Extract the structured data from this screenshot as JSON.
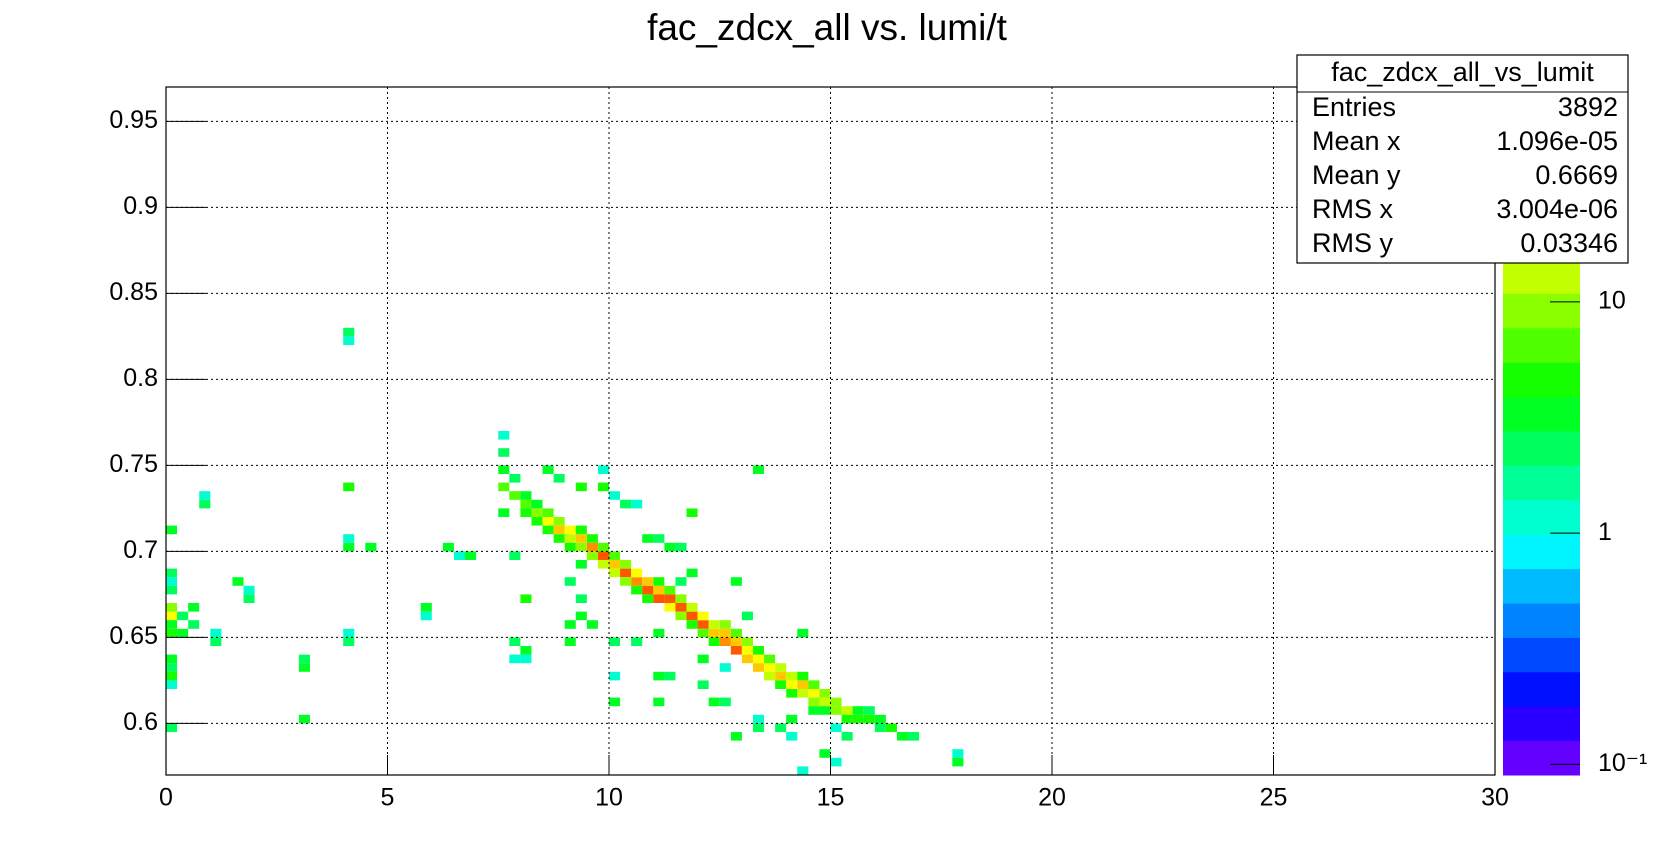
{
  "chart_data": {
    "type": "heatmap2d",
    "title": "fac_zdcx_all vs. lumi/t",
    "xlim": [
      0,
      30
    ],
    "xticks": [
      0,
      5,
      10,
      15,
      20,
      25,
      30
    ],
    "ylim": [
      0.57,
      0.97
    ],
    "yticks": [
      0.6,
      0.65,
      0.7,
      0.75,
      0.8,
      0.85,
      0.9,
      0.95
    ],
    "zlim": [
      0.09,
      85
    ],
    "zlog": true,
    "zticks": [
      {
        "value": 0.1,
        "label": "10⁻¹"
      },
      1,
      10
    ],
    "contours": 20,
    "bin_width": [
      0.25,
      0.005
    ],
    "grid": true,
    "stats": {
      "title": "fac_zdcx_all_vs_lumit",
      "rows": [
        {
          "label": "Entries",
          "value": "3892"
        },
        {
          "label": "Mean x",
          "value": "1.096e-05"
        },
        {
          "label": "Mean y",
          "value": "0.6669"
        },
        {
          "label": "RMS x",
          "value": "3.004e-06"
        },
        {
          "label": "RMS y",
          "value": "0.03346"
        }
      ]
    },
    "cells": [
      {
        "x": 8.125,
        "y": 0.7275,
        "z": 6
      },
      {
        "x": 8.125,
        "y": 0.7325,
        "z": 3
      },
      {
        "x": 8.125,
        "y": 0.7225,
        "z": 4
      },
      {
        "x": 8.375,
        "y": 0.7225,
        "z": 10
      },
      {
        "x": 8.375,
        "y": 0.7175,
        "z": 4
      },
      {
        "x": 8.375,
        "y": 0.7275,
        "z": 3
      },
      {
        "x": 8.625,
        "y": 0.7175,
        "z": 20
      },
      {
        "x": 8.625,
        "y": 0.7125,
        "z": 5
      },
      {
        "x": 8.625,
        "y": 0.7225,
        "z": 6
      },
      {
        "x": 8.875,
        "y": 0.7125,
        "z": 25
      },
      {
        "x": 8.875,
        "y": 0.7175,
        "z": 8
      },
      {
        "x": 8.875,
        "y": 0.7075,
        "z": 4
      },
      {
        "x": 9.125,
        "y": 0.7075,
        "z": 15
      },
      {
        "x": 9.125,
        "y": 0.7125,
        "z": 20
      },
      {
        "x": 9.125,
        "y": 0.7025,
        "z": 4
      },
      {
        "x": 9.375,
        "y": 0.7075,
        "z": 30
      },
      {
        "x": 9.375,
        "y": 0.7025,
        "z": 10
      },
      {
        "x": 9.375,
        "y": 0.7125,
        "z": 4
      },
      {
        "x": 9.625,
        "y": 0.7025,
        "z": 40
      },
      {
        "x": 9.625,
        "y": 0.6975,
        "z": 8
      },
      {
        "x": 9.625,
        "y": 0.7075,
        "z": 5
      },
      {
        "x": 9.875,
        "y": 0.6975,
        "z": 50
      },
      {
        "x": 9.875,
        "y": 0.6925,
        "z": 12
      },
      {
        "x": 9.875,
        "y": 0.7025,
        "z": 6
      },
      {
        "x": 10.125,
        "y": 0.6925,
        "z": 30
      },
      {
        "x": 10.125,
        "y": 0.6875,
        "z": 15
      },
      {
        "x": 10.125,
        "y": 0.6975,
        "z": 6
      },
      {
        "x": 10.375,
        "y": 0.6875,
        "z": 50
      },
      {
        "x": 10.375,
        "y": 0.6825,
        "z": 10
      },
      {
        "x": 10.375,
        "y": 0.6925,
        "z": 8
      },
      {
        "x": 10.625,
        "y": 0.6825,
        "z": 40
      },
      {
        "x": 10.625,
        "y": 0.6875,
        "z": 20
      },
      {
        "x": 10.625,
        "y": 0.6775,
        "z": 5
      },
      {
        "x": 10.875,
        "y": 0.6775,
        "z": 50
      },
      {
        "x": 10.875,
        "y": 0.6825,
        "z": 25
      },
      {
        "x": 10.875,
        "y": 0.6725,
        "z": 4
      },
      {
        "x": 11.125,
        "y": 0.6775,
        "z": 30
      },
      {
        "x": 11.125,
        "y": 0.6725,
        "z": 50
      },
      {
        "x": 11.125,
        "y": 0.6825,
        "z": 5
      },
      {
        "x": 11.375,
        "y": 0.6725,
        "z": 45
      },
      {
        "x": 11.375,
        "y": 0.6675,
        "z": 20
      },
      {
        "x": 11.375,
        "y": 0.6775,
        "z": 6
      },
      {
        "x": 11.625,
        "y": 0.6675,
        "z": 60
      },
      {
        "x": 11.625,
        "y": 0.6625,
        "z": 10
      },
      {
        "x": 11.625,
        "y": 0.6725,
        "z": 8
      },
      {
        "x": 11.875,
        "y": 0.6625,
        "z": 50
      },
      {
        "x": 11.875,
        "y": 0.6675,
        "z": 15
      },
      {
        "x": 11.875,
        "y": 0.6575,
        "z": 5
      },
      {
        "x": 12.125,
        "y": 0.6575,
        "z": 45
      },
      {
        "x": 12.125,
        "y": 0.6625,
        "z": 20
      },
      {
        "x": 12.125,
        "y": 0.6525,
        "z": 6
      },
      {
        "x": 12.375,
        "y": 0.6525,
        "z": 30
      },
      {
        "x": 12.375,
        "y": 0.6575,
        "z": 15
      },
      {
        "x": 12.375,
        "y": 0.6475,
        "z": 4
      },
      {
        "x": 12.625,
        "y": 0.6525,
        "z": 25
      },
      {
        "x": 12.625,
        "y": 0.6475,
        "z": 40
      },
      {
        "x": 12.625,
        "y": 0.6575,
        "z": 8
      },
      {
        "x": 12.875,
        "y": 0.6475,
        "z": 30
      },
      {
        "x": 12.875,
        "y": 0.6425,
        "z": 50
      },
      {
        "x": 12.875,
        "y": 0.6525,
        "z": 6
      },
      {
        "x": 13.125,
        "y": 0.6425,
        "z": 20
      },
      {
        "x": 13.125,
        "y": 0.6375,
        "z": 30
      },
      {
        "x": 13.125,
        "y": 0.6475,
        "z": 8
      },
      {
        "x": 13.375,
        "y": 0.6375,
        "z": 20
      },
      {
        "x": 13.375,
        "y": 0.6325,
        "z": 25
      },
      {
        "x": 13.375,
        "y": 0.6425,
        "z": 5
      },
      {
        "x": 13.625,
        "y": 0.6325,
        "z": 20
      },
      {
        "x": 13.625,
        "y": 0.6275,
        "z": 15
      },
      {
        "x": 13.625,
        "y": 0.6375,
        "z": 6
      },
      {
        "x": 13.875,
        "y": 0.6275,
        "z": 25
      },
      {
        "x": 13.875,
        "y": 0.6325,
        "z": 15
      },
      {
        "x": 13.875,
        "y": 0.6225,
        "z": 5
      },
      {
        "x": 14.125,
        "y": 0.6275,
        "z": 15
      },
      {
        "x": 14.125,
        "y": 0.6225,
        "z": 20
      },
      {
        "x": 14.125,
        "y": 0.6175,
        "z": 4
      },
      {
        "x": 14.375,
        "y": 0.6225,
        "z": 25
      },
      {
        "x": 14.375,
        "y": 0.6175,
        "z": 12
      },
      {
        "x": 14.375,
        "y": 0.6275,
        "z": 5
      },
      {
        "x": 14.625,
        "y": 0.6175,
        "z": 20
      },
      {
        "x": 14.625,
        "y": 0.6125,
        "z": 8
      },
      {
        "x": 14.625,
        "y": 0.6225,
        "z": 6
      },
      {
        "x": 14.875,
        "y": 0.6125,
        "z": 15
      },
      {
        "x": 14.875,
        "y": 0.6175,
        "z": 10
      },
      {
        "x": 14.875,
        "y": 0.6075,
        "z": 3
      },
      {
        "x": 15.125,
        "y": 0.6125,
        "z": 10
      },
      {
        "x": 15.125,
        "y": 0.6075,
        "z": 8
      },
      {
        "x": 15.375,
        "y": 0.6075,
        "z": 12
      },
      {
        "x": 15.375,
        "y": 0.6025,
        "z": 4
      },
      {
        "x": 15.625,
        "y": 0.6075,
        "z": 3
      },
      {
        "x": 15.625,
        "y": 0.6025,
        "z": 4
      },
      {
        "x": 15.875,
        "y": 0.6025,
        "z": 4
      },
      {
        "x": 15.875,
        "y": 0.6075,
        "z": 2
      },
      {
        "x": 16.125,
        "y": 0.6025,
        "z": 3
      },
      {
        "x": 16.125,
        "y": 0.5975,
        "z": 2
      },
      {
        "x": 16.375,
        "y": 0.5975,
        "z": 5
      },
      {
        "x": 16.625,
        "y": 0.5925,
        "z": 3
      },
      {
        "x": 16.875,
        "y": 0.5925,
        "z": 2
      },
      {
        "x": 4.125,
        "y": 0.8275,
        "z": 2
      },
      {
        "x": 4.125,
        "y": 0.8225,
        "z": 1
      },
      {
        "x": 0.875,
        "y": 0.7325,
        "z": 1
      },
      {
        "x": 0.875,
        "y": 0.7275,
        "z": 2
      },
      {
        "x": 0.125,
        "y": 0.7125,
        "z": 3
      },
      {
        "x": 0.125,
        "y": 0.6875,
        "z": 2
      },
      {
        "x": 0.125,
        "y": 0.6825,
        "z": 1
      },
      {
        "x": 0.125,
        "y": 0.6775,
        "z": 2
      },
      {
        "x": 0.125,
        "y": 0.6675,
        "z": 8
      },
      {
        "x": 0.125,
        "y": 0.6625,
        "z": 20
      },
      {
        "x": 0.125,
        "y": 0.6575,
        "z": 3
      },
      {
        "x": 0.125,
        "y": 0.6525,
        "z": 4
      },
      {
        "x": 0.125,
        "y": 0.6375,
        "z": 3
      },
      {
        "x": 0.125,
        "y": 0.6325,
        "z": 2
      },
      {
        "x": 0.125,
        "y": 0.6275,
        "z": 4
      },
      {
        "x": 0.125,
        "y": 0.6225,
        "z": 1
      },
      {
        "x": 0.125,
        "y": 0.5975,
        "z": 2
      },
      {
        "x": 0.375,
        "y": 0.6625,
        "z": 2
      },
      {
        "x": 0.375,
        "y": 0.6525,
        "z": 3
      },
      {
        "x": 0.625,
        "y": 0.6675,
        "z": 3
      },
      {
        "x": 0.625,
        "y": 0.6575,
        "z": 2
      },
      {
        "x": 1.125,
        "y": 0.6475,
        "z": 2
      },
      {
        "x": 1.125,
        "y": 0.6525,
        "z": 1
      },
      {
        "x": 1.625,
        "y": 0.6825,
        "z": 3
      },
      {
        "x": 1.875,
        "y": 0.6725,
        "z": 2
      },
      {
        "x": 1.875,
        "y": 0.6775,
        "z": 1
      },
      {
        "x": 3.125,
        "y": 0.6375,
        "z": 2
      },
      {
        "x": 3.125,
        "y": 0.6325,
        "z": 3
      },
      {
        "x": 3.125,
        "y": 0.6025,
        "z": 3
      },
      {
        "x": 4.125,
        "y": 0.7375,
        "z": 4
      },
      {
        "x": 4.125,
        "y": 0.7075,
        "z": 1
      },
      {
        "x": 4.125,
        "y": 0.7025,
        "z": 3
      },
      {
        "x": 4.125,
        "y": 0.6525,
        "z": 1
      },
      {
        "x": 4.125,
        "y": 0.6475,
        "z": 2
      },
      {
        "x": 4.625,
        "y": 0.7025,
        "z": 3
      },
      {
        "x": 5.875,
        "y": 0.6675,
        "z": 3
      },
      {
        "x": 5.875,
        "y": 0.6625,
        "z": 1
      },
      {
        "x": 6.375,
        "y": 0.7025,
        "z": 3
      },
      {
        "x": 6.625,
        "y": 0.6975,
        "z": 1
      },
      {
        "x": 6.875,
        "y": 0.6975,
        "z": 3
      },
      {
        "x": 7.625,
        "y": 0.7675,
        "z": 1
      },
      {
        "x": 7.625,
        "y": 0.7575,
        "z": 2
      },
      {
        "x": 7.625,
        "y": 0.7475,
        "z": 3
      },
      {
        "x": 7.875,
        "y": 0.7425,
        "z": 2
      },
      {
        "x": 7.625,
        "y": 0.7375,
        "z": 6
      },
      {
        "x": 7.875,
        "y": 0.7325,
        "z": 6
      },
      {
        "x": 7.625,
        "y": 0.7225,
        "z": 3
      },
      {
        "x": 7.875,
        "y": 0.6975,
        "z": 2
      },
      {
        "x": 7.875,
        "y": 0.6475,
        "z": 2
      },
      {
        "x": 7.875,
        "y": 0.6375,
        "z": 1
      },
      {
        "x": 8.125,
        "y": 0.6425,
        "z": 3
      },
      {
        "x": 8.125,
        "y": 0.6375,
        "z": 1
      },
      {
        "x": 8.125,
        "y": 0.6725,
        "z": 4
      },
      {
        "x": 8.625,
        "y": 0.7475,
        "z": 3
      },
      {
        "x": 8.875,
        "y": 0.7425,
        "z": 2
      },
      {
        "x": 9.375,
        "y": 0.7375,
        "z": 4
      },
      {
        "x": 9.875,
        "y": 0.7475,
        "z": 1
      },
      {
        "x": 9.875,
        "y": 0.7375,
        "z": 4
      },
      {
        "x": 10.125,
        "y": 0.7325,
        "z": 1
      },
      {
        "x": 10.625,
        "y": 0.7275,
        "z": 1
      },
      {
        "x": 10.375,
        "y": 0.7275,
        "z": 2
      },
      {
        "x": 9.125,
        "y": 0.6575,
        "z": 3
      },
      {
        "x": 9.125,
        "y": 0.6825,
        "z": 2
      },
      {
        "x": 9.375,
        "y": 0.6725,
        "z": 2
      },
      {
        "x": 9.375,
        "y": 0.6625,
        "z": 3
      },
      {
        "x": 9.625,
        "y": 0.6575,
        "z": 3
      },
      {
        "x": 9.125,
        "y": 0.6475,
        "z": 3
      },
      {
        "x": 10.125,
        "y": 0.6475,
        "z": 2
      },
      {
        "x": 10.125,
        "y": 0.6275,
        "z": 1
      },
      {
        "x": 10.125,
        "y": 0.6125,
        "z": 3
      },
      {
        "x": 10.625,
        "y": 0.6475,
        "z": 2
      },
      {
        "x": 11.125,
        "y": 0.6275,
        "z": 3
      },
      {
        "x": 11.375,
        "y": 0.6275,
        "z": 2
      },
      {
        "x": 11.125,
        "y": 0.6125,
        "z": 3
      },
      {
        "x": 11.125,
        "y": 0.6525,
        "z": 3
      },
      {
        "x": 11.625,
        "y": 0.6825,
        "z": 2
      },
      {
        "x": 11.625,
        "y": 0.7025,
        "z": 2
      },
      {
        "x": 11.875,
        "y": 0.7225,
        "z": 4
      },
      {
        "x": 11.875,
        "y": 0.6875,
        "z": 3
      },
      {
        "x": 12.125,
        "y": 0.6225,
        "z": 2
      },
      {
        "x": 12.125,
        "y": 0.6375,
        "z": 3
      },
      {
        "x": 12.375,
        "y": 0.6125,
        "z": 3
      },
      {
        "x": 12.625,
        "y": 0.6125,
        "z": 2
      },
      {
        "x": 12.625,
        "y": 0.6325,
        "z": 1
      },
      {
        "x": 12.875,
        "y": 0.6825,
        "z": 3
      },
      {
        "x": 13.375,
        "y": 0.7475,
        "z": 3
      },
      {
        "x": 13.375,
        "y": 0.6025,
        "z": 1
      },
      {
        "x": 13.375,
        "y": 0.5975,
        "z": 2
      },
      {
        "x": 12.875,
        "y": 0.5925,
        "z": 3
      },
      {
        "x": 13.875,
        "y": 0.5975,
        "z": 2
      },
      {
        "x": 14.125,
        "y": 0.6025,
        "z": 3
      },
      {
        "x": 14.125,
        "y": 0.5925,
        "z": 1
      },
      {
        "x": 14.375,
        "y": 0.5725,
        "z": 1
      },
      {
        "x": 14.625,
        "y": 0.6075,
        "z": 3
      },
      {
        "x": 14.875,
        "y": 0.5825,
        "z": 3
      },
      {
        "x": 15.125,
        "y": 0.5775,
        "z": 1
      },
      {
        "x": 15.125,
        "y": 0.5975,
        "z": 1
      },
      {
        "x": 15.375,
        "y": 0.5925,
        "z": 2
      },
      {
        "x": 17.875,
        "y": 0.5825,
        "z": 1
      },
      {
        "x": 17.875,
        "y": 0.5775,
        "z": 3
      },
      {
        "x": 14.375,
        "y": 0.6525,
        "z": 3
      },
      {
        "x": 13.125,
        "y": 0.6625,
        "z": 2
      },
      {
        "x": 9.375,
        "y": 0.6925,
        "z": 3
      },
      {
        "x": 10.875,
        "y": 0.7075,
        "z": 3
      },
      {
        "x": 11.125,
        "y": 0.7075,
        "z": 2
      },
      {
        "x": 11.375,
        "y": 0.7025,
        "z": 3
      }
    ]
  }
}
